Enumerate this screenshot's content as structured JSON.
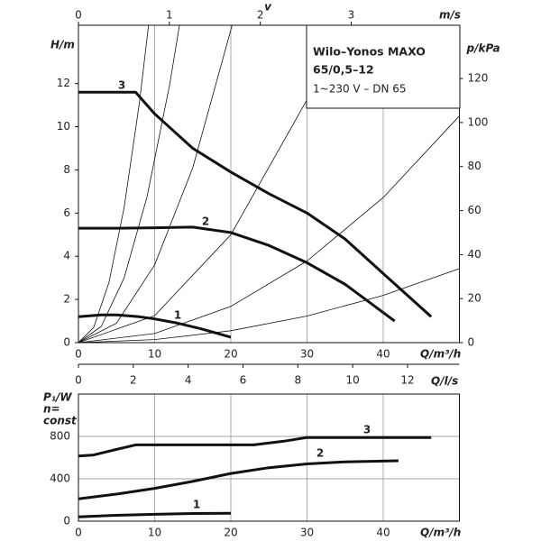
{
  "chart_data": [
    {
      "type": "line",
      "title_lines": [
        "Wilo–Yonos MAXO",
        "65/0,5–12"
      ],
      "subtitle": "1~230 V – DN 65",
      "xlabel": "Q/m³/h",
      "ylabel": "H/m",
      "y2label": "p/kPa",
      "x2label": "v",
      "x2unit": "m/s",
      "x3label": "Q/l/s",
      "xlim": [
        0,
        50
      ],
      "xticks": [
        0,
        10,
        20,
        30,
        40
      ],
      "ylim": [
        0,
        14.7
      ],
      "yticks": [
        0,
        2,
        4,
        6,
        8,
        10,
        12
      ],
      "y2lim": [
        0,
        144.2
      ],
      "y2ticks": [
        0,
        20,
        40,
        60,
        80,
        100,
        120
      ],
      "x2lim": [
        0,
        4.19
      ],
      "x2ticks": [
        0,
        1,
        2,
        3
      ],
      "x3lim": [
        0,
        13.89
      ],
      "x3ticks": [
        0,
        2,
        4,
        6,
        8,
        10,
        12
      ],
      "grid": "x",
      "color": "#111111",
      "series": [
        {
          "name": "3",
          "x": [
            0,
            7.5,
            10,
            12.5,
            15,
            20,
            25,
            30,
            35,
            40,
            46.3
          ],
          "values": [
            11.6,
            11.6,
            10.6,
            9.8,
            9.0,
            7.9,
            6.9,
            6.0,
            4.8,
            3.2,
            1.2
          ]
        },
        {
          "name": "2",
          "x": [
            0,
            5,
            10,
            15,
            20,
            25,
            30,
            35,
            41.5
          ],
          "values": [
            5.3,
            5.3,
            5.32,
            5.35,
            5.1,
            4.5,
            3.7,
            2.7,
            1.0
          ]
        },
        {
          "name": "1",
          "x": [
            0,
            3,
            5,
            8,
            10,
            13,
            16,
            20
          ],
          "values": [
            1.2,
            1.28,
            1.28,
            1.2,
            1.1,
            0.9,
            0.65,
            0.25
          ]
        }
      ],
      "system_curves": [
        {
          "x": [
            0,
            2,
            4,
            6,
            8,
            9.3
          ],
          "values": [
            0,
            0.7,
            2.78,
            6.26,
            11.1,
            15.0
          ]
        },
        {
          "x": [
            0,
            3,
            6,
            9,
            12,
            13.4
          ],
          "values": [
            0,
            0.75,
            3.0,
            6.76,
            12.0,
            15.0
          ]
        },
        {
          "x": [
            0,
            5,
            10,
            15,
            20.4
          ],
          "values": [
            0,
            0.9,
            3.6,
            8.1,
            15.0
          ]
        },
        {
          "x": [
            0,
            10,
            20,
            30,
            34.6
          ],
          "values": [
            0,
            1.25,
            5.0,
            11.25,
            15.0
          ]
        },
        {
          "x": [
            0,
            10,
            20,
            30,
            40,
            50
          ],
          "values": [
            0,
            0.42,
            1.68,
            3.78,
            6.72,
            10.5
          ]
        },
        {
          "x": [
            0,
            10,
            20,
            30,
            40,
            50
          ],
          "values": [
            0,
            0.14,
            0.55,
            1.23,
            2.19,
            3.43
          ]
        }
      ]
    },
    {
      "type": "line",
      "ylabel_lines": [
        "P₁/W",
        "n=",
        "const"
      ],
      "xlabel": "Q/m³/h",
      "xlim": [
        0,
        50
      ],
      "xticks": [
        0,
        10,
        20,
        30,
        40
      ],
      "ylim": [
        0,
        1200
      ],
      "yticks": [
        0,
        400,
        800
      ],
      "grid": "both",
      "color": "#111111",
      "series": [
        {
          "name": "3",
          "x": [
            0,
            2,
            4,
            7.5,
            23,
            27,
            30,
            46.3
          ],
          "values": [
            615,
            625,
            660,
            720,
            720,
            755,
            790,
            790
          ]
        },
        {
          "name": "2",
          "x": [
            0,
            5,
            10,
            15,
            20,
            25,
            30,
            35,
            42
          ],
          "values": [
            210,
            255,
            310,
            375,
            450,
            505,
            540,
            560,
            570
          ]
        },
        {
          "name": "1",
          "x": [
            0,
            5,
            10,
            15,
            20
          ],
          "values": [
            40,
            55,
            65,
            72,
            75
          ]
        }
      ]
    }
  ]
}
